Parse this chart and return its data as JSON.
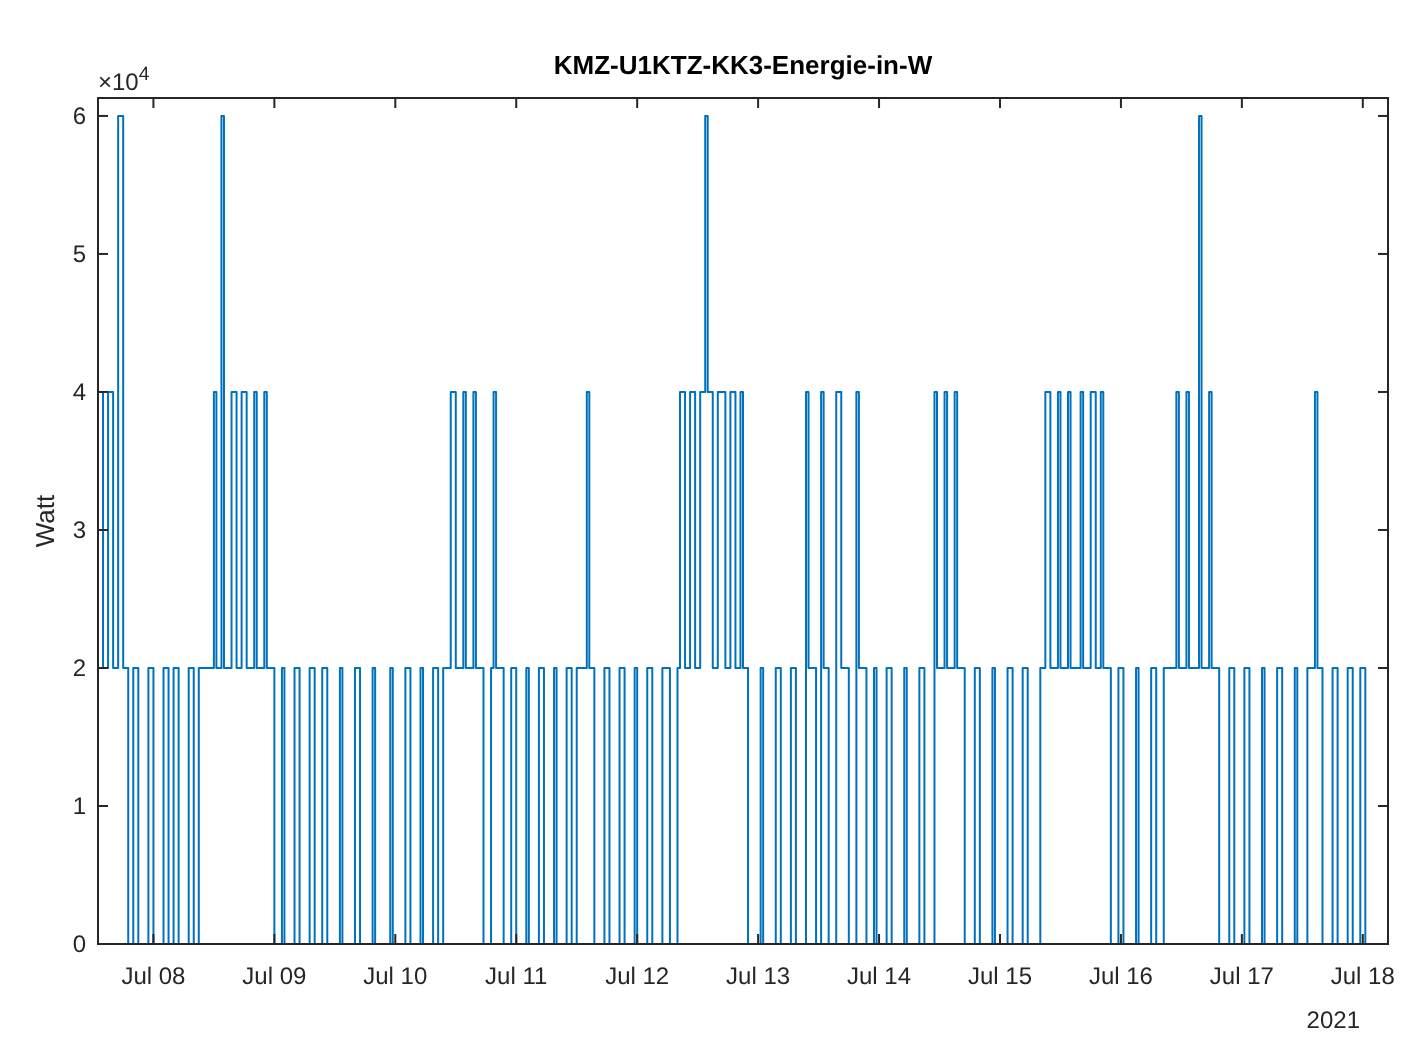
{
  "chart_data": {
    "type": "step",
    "title": "KMZ-U1KTZ-KK3-Energie-in-W",
    "ylabel": "Watt",
    "annotations": [
      "×10$^{4}$",
      "2021"
    ],
    "xlim": [
      "2021-07-07T13:00",
      "2021-07-18T05:00"
    ],
    "xticks": [
      {
        "value": "2021-07-08",
        "label": "Jul 08"
      },
      {
        "value": "2021-07-09",
        "label": "Jul 09"
      },
      {
        "value": "2021-07-10",
        "label": "Jul 10"
      },
      {
        "value": "2021-07-11",
        "label": "Jul 11"
      },
      {
        "value": "2021-07-12",
        "label": "Jul 12"
      },
      {
        "value": "2021-07-13",
        "label": "Jul 13"
      },
      {
        "value": "2021-07-14",
        "label": "Jul 14"
      },
      {
        "value": "2021-07-15",
        "label": "Jul 15"
      },
      {
        "value": "2021-07-16",
        "label": "Jul 16"
      },
      {
        "value": "2021-07-17",
        "label": "Jul 17"
      },
      {
        "value": "2021-07-18",
        "label": "Jul 18"
      }
    ],
    "ylim": [
      0,
      6.13
    ],
    "yticks": [
      0,
      1,
      2,
      3,
      4,
      5,
      6
    ],
    "grid": false,
    "line_style": "solid",
    "marker": "none",
    "series": [
      {
        "color": "#0072bd",
        "x": [
          "2021-07-07T13:00",
          "2021-07-07T14:00",
          "2021-07-07T15:00",
          "2021-07-07T16:00",
          "2021-07-07T17:00",
          "2021-07-07T18:00",
          "2021-07-07T19:00",
          "2021-07-07T20:00",
          "2021-07-07T21:00",
          "2021-07-07T23:00",
          "2021-07-08T00:00",
          "2021-07-08T02:00",
          "2021-07-08T03:00",
          "2021-07-08T04:00",
          "2021-07-08T05:00",
          "2021-07-08T07:00",
          "2021-07-08T08:00",
          "2021-07-08T09:00",
          "2021-07-08T12:00",
          "2021-07-08T12:30",
          "2021-07-08T13:30",
          "2021-07-08T14:00",
          "2021-07-08T15:30",
          "2021-07-08T16:30",
          "2021-07-08T17:30",
          "2021-07-08T18:30",
          "2021-07-08T20:00",
          "2021-07-08T20:30",
          "2021-07-08T22:00",
          "2021-07-08T22:30",
          "2021-07-09T00:00",
          "2021-07-09T01:30",
          "2021-07-09T02:00",
          "2021-07-09T04:00",
          "2021-07-09T05:00",
          "2021-07-09T07:00",
          "2021-07-09T08:00",
          "2021-07-09T09:30",
          "2021-07-09T10:30",
          "2021-07-09T13:00",
          "2021-07-09T13:30",
          "2021-07-09T16:00",
          "2021-07-09T17:00",
          "2021-07-09T19:30",
          "2021-07-09T20:00",
          "2021-07-09T23:00",
          "2021-07-09T23:30",
          "2021-07-10T02:00",
          "2021-07-10T03:00",
          "2021-07-10T05:00",
          "2021-07-10T05:30",
          "2021-07-10T07:30",
          "2021-07-10T08:30",
          "2021-07-10T09:30",
          "2021-07-10T11:00",
          "2021-07-10T12:00",
          "2021-07-10T13:30",
          "2021-07-10T14:00",
          "2021-07-10T15:30",
          "2021-07-10T16:00",
          "2021-07-10T17:30",
          "2021-07-10T19:00",
          "2021-07-10T19:30",
          "2021-07-10T20:00",
          "2021-07-10T21:30",
          "2021-07-10T23:00",
          "2021-07-11T00:00",
          "2021-07-11T02:00",
          "2021-07-11T02:30",
          "2021-07-11T04:30",
          "2021-07-11T05:30",
          "2021-07-11T07:30",
          "2021-07-11T08:00",
          "2021-07-11T10:00",
          "2021-07-11T11:00",
          "2021-07-11T12:00",
          "2021-07-11T14:00",
          "2021-07-11T14:30",
          "2021-07-11T15:30",
          "2021-07-11T17:30",
          "2021-07-11T18:30",
          "2021-07-11T20:30",
          "2021-07-11T21:30",
          "2021-07-11T23:30",
          "2021-07-12T00:00",
          "2021-07-12T02:00",
          "2021-07-12T03:00",
          "2021-07-12T05:00",
          "2021-07-12T06:30",
          "2021-07-12T08:00",
          "2021-07-12T08:30",
          "2021-07-12T09:30",
          "2021-07-12T10:30",
          "2021-07-12T11:30",
          "2021-07-12T12:30",
          "2021-07-12T13:30",
          "2021-07-12T14:00",
          "2021-07-12T15:00",
          "2021-07-12T16:00",
          "2021-07-12T17:30",
          "2021-07-12T18:30",
          "2021-07-12T19:30",
          "2021-07-12T20:30",
          "2021-07-12T21:00",
          "2021-07-12T22:00",
          "2021-07-13T00:30",
          "2021-07-13T01:00",
          "2021-07-13T03:30",
          "2021-07-13T04:30",
          "2021-07-13T06:30",
          "2021-07-13T07:30",
          "2021-07-13T09:30",
          "2021-07-13T10:00",
          "2021-07-13T11:30",
          "2021-07-13T12:30",
          "2021-07-13T13:00",
          "2021-07-13T14:00",
          "2021-07-13T15:30",
          "2021-07-13T16:30",
          "2021-07-13T18:00",
          "2021-07-13T19:30",
          "2021-07-13T20:00",
          "2021-07-13T21:30",
          "2021-07-13T23:00",
          "2021-07-13T23:30",
          "2021-07-14T01:30",
          "2021-07-14T02:30",
          "2021-07-14T05:00",
          "2021-07-14T05:30",
          "2021-07-14T08:00",
          "2021-07-14T09:00",
          "2021-07-14T11:00",
          "2021-07-14T11:30",
          "2021-07-14T13:00",
          "2021-07-14T13:30",
          "2021-07-14T15:00",
          "2021-07-14T15:30",
          "2021-07-14T17:00",
          "2021-07-14T19:00",
          "2021-07-14T20:00",
          "2021-07-14T22:30",
          "2021-07-14T23:00",
          "2021-07-15T01:30",
          "2021-07-15T02:30",
          "2021-07-15T04:30",
          "2021-07-15T05:30",
          "2021-07-15T08:00",
          "2021-07-15T09:00",
          "2021-07-15T10:00",
          "2021-07-15T11:30",
          "2021-07-15T12:00",
          "2021-07-15T13:30",
          "2021-07-15T14:00",
          "2021-07-15T16:00",
          "2021-07-15T16:30",
          "2021-07-15T18:00",
          "2021-07-15T19:00",
          "2021-07-15T20:00",
          "2021-07-15T20:30",
          "2021-07-15T22:00",
          "2021-07-15T23:30",
          "2021-07-16T00:30",
          "2021-07-16T03:00",
          "2021-07-16T03:30",
          "2021-07-16T06:00",
          "2021-07-16T07:00",
          "2021-07-16T08:30",
          "2021-07-16T11:00",
          "2021-07-16T11:30",
          "2021-07-16T13:00",
          "2021-07-16T13:30",
          "2021-07-16T15:30",
          "2021-07-16T16:00",
          "2021-07-16T17:30",
          "2021-07-16T18:00",
          "2021-07-16T19:30",
          "2021-07-16T21:30",
          "2021-07-16T22:30",
          "2021-07-17T00:30",
          "2021-07-17T01:30",
          "2021-07-17T04:00",
          "2021-07-17T04:30",
          "2021-07-17T07:00",
          "2021-07-17T08:00",
          "2021-07-17T10:30",
          "2021-07-17T11:00",
          "2021-07-17T13:00",
          "2021-07-17T14:30",
          "2021-07-17T15:00",
          "2021-07-17T16:00",
          "2021-07-17T18:00",
          "2021-07-17T19:00",
          "2021-07-17T21:00",
          "2021-07-17T22:00",
          "2021-07-17T23:30",
          "2021-07-18T00:30",
          "2021-07-18T02:00"
        ],
        "values": [
          4,
          2,
          4,
          2,
          6,
          2,
          0,
          2,
          0,
          2,
          0,
          2,
          0,
          2,
          0,
          2,
          0,
          2,
          4,
          2,
          6,
          2,
          4,
          2,
          4,
          2,
          4,
          2,
          4,
          2,
          0,
          2,
          0,
          2,
          0,
          2,
          0,
          2,
          0,
          2,
          0,
          2,
          0,
          2,
          0,
          2,
          0,
          2,
          0,
          2,
          0,
          2,
          0,
          2,
          4,
          2,
          4,
          2,
          4,
          2,
          0,
          2,
          4,
          2,
          0,
          2,
          0,
          2,
          0,
          2,
          0,
          2,
          0,
          2,
          0,
          2,
          4,
          2,
          0,
          2,
          0,
          2,
          0,
          2,
          0,
          2,
          0,
          2,
          0,
          2,
          4,
          2,
          4,
          2,
          4,
          6,
          4,
          2,
          4,
          2,
          4,
          2,
          4,
          2,
          0,
          2,
          0,
          2,
          0,
          2,
          0,
          4,
          2,
          0,
          4,
          2,
          0,
          4,
          2,
          0,
          4,
          2,
          0,
          2,
          0,
          2,
          0,
          2,
          0,
          2,
          0,
          4,
          2,
          4,
          2,
          4,
          2,
          0,
          2,
          0,
          2,
          0,
          2,
          0,
          2,
          0,
          2,
          4,
          2,
          4,
          2,
          4,
          2,
          4,
          2,
          4,
          2,
          4,
          2,
          0,
          2,
          0,
          2,
          0,
          2,
          0,
          2,
          4,
          2,
          4,
          2,
          6,
          2,
          4,
          2,
          0,
          2,
          0,
          2,
          0,
          2,
          0,
          2,
          0,
          2,
          0,
          2,
          4,
          2,
          0,
          2,
          0,
          2,
          0,
          2,
          0,
          0
        ]
      }
    ]
  }
}
